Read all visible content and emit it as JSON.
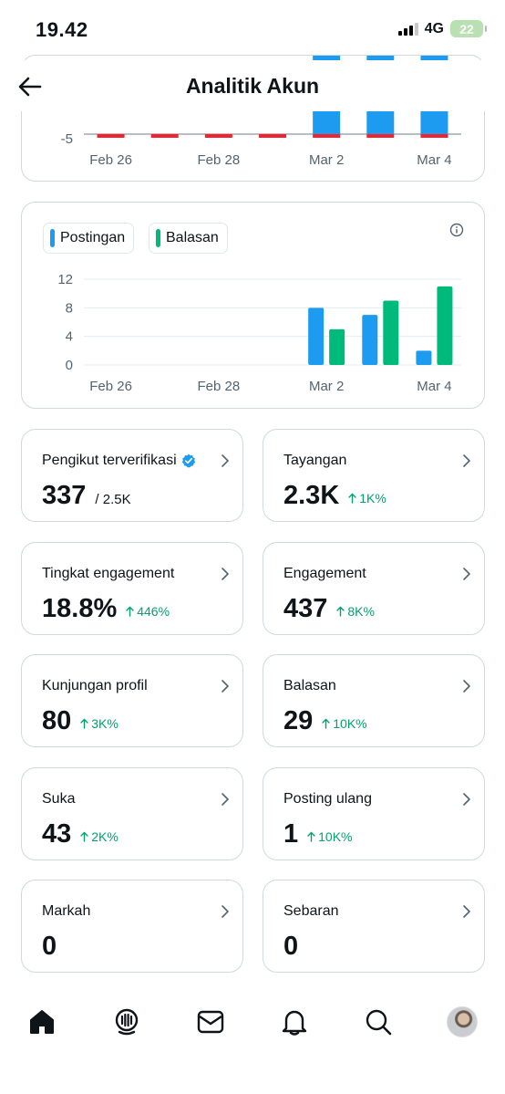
{
  "status": {
    "time": "19.42",
    "network": "4G",
    "battery": "22"
  },
  "header": {
    "title": "Analitik Akun"
  },
  "chart_top": {
    "y_ticks_visible": [
      "-5"
    ],
    "x_labels": [
      "Feb 26",
      "Feb 28",
      "Mar 2",
      "Mar 4"
    ]
  },
  "chart_data": {
    "type": "bar",
    "categories": [
      "Feb 26",
      "Feb 27",
      "Feb 28",
      "Mar 1",
      "Mar 2",
      "Mar 3",
      "Mar 4"
    ],
    "series": [
      {
        "name": "Postingan",
        "color": "#1d9bf0",
        "values": [
          0,
          0,
          0,
          0,
          8,
          7,
          2
        ]
      },
      {
        "name": "Balasan",
        "color": "#00ba7c",
        "values": [
          0,
          0,
          0,
          0,
          5,
          9,
          11
        ]
      }
    ],
    "x_tick_labels": [
      "Feb 26",
      "Feb 28",
      "Mar 2",
      "Mar 4"
    ],
    "y_ticks": [
      "0",
      "4",
      "8",
      "12"
    ],
    "ylim": [
      0,
      12
    ],
    "grid": true,
    "legend": "top-left"
  },
  "stats": [
    {
      "label": "Pengikut terverifikasi",
      "value": "337",
      "sub": "/ 2.5K",
      "change": "",
      "verified": true
    },
    {
      "label": "Tayangan",
      "value": "2.3K",
      "sub": "",
      "change": "1K%"
    },
    {
      "label": "Tingkat engagement",
      "value": "18.8%",
      "sub": "",
      "change": "446%"
    },
    {
      "label": "Engagement",
      "value": "437",
      "sub": "",
      "change": "8K%"
    },
    {
      "label": "Kunjungan profil",
      "value": "80",
      "sub": "",
      "change": "3K%"
    },
    {
      "label": "Balasan",
      "value": "29",
      "sub": "",
      "change": "10K%"
    },
    {
      "label": "Suka",
      "value": "43",
      "sub": "",
      "change": "2K%"
    },
    {
      "label": "Posting ulang",
      "value": "1",
      "sub": "",
      "change": "10K%"
    },
    {
      "label": "Markah",
      "value": "0",
      "sub": "",
      "change": ""
    },
    {
      "label": "Sebaran",
      "value": "0",
      "sub": "",
      "change": ""
    }
  ],
  "nav": [
    "home-icon",
    "grok-icon",
    "messages-icon",
    "notifications-icon",
    "search-icon",
    "avatar"
  ],
  "colors": {
    "blue": "#1d9bf0",
    "green": "#00ba7c",
    "red": "#f4212e",
    "change_green": "#00a36c"
  }
}
